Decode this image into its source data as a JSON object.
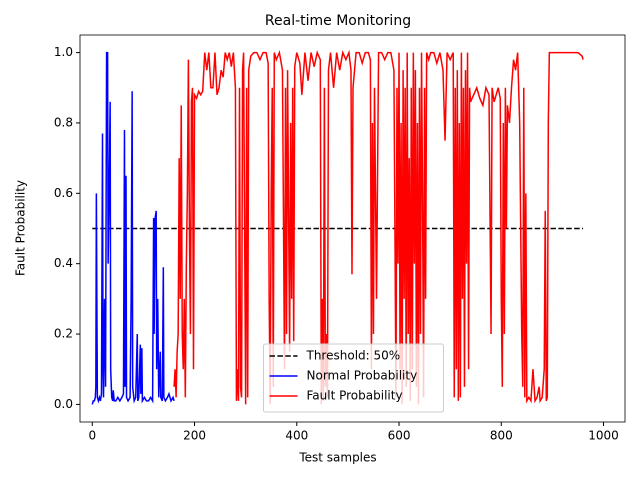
{
  "chart_data": {
    "type": "line",
    "title": "Real-time Monitoring",
    "x_label": "Test samples",
    "y_label": "Fault Probability",
    "xlim": [
      -24,
      1042
    ],
    "ylim": [
      -0.05,
      1.05
    ],
    "xticks": [
      0,
      200,
      400,
      600,
      800,
      1000
    ],
    "yticks": [
      {
        "value": 0,
        "label": "0.0"
      },
      {
        "value": 0.2,
        "label": "0.2"
      },
      {
        "value": 0.4,
        "label": "0.4"
      },
      {
        "value": 0.6,
        "label": "0.6"
      },
      {
        "value": 0.8,
        "label": "0.8"
      },
      {
        "value": 1,
        "label": "1.0"
      }
    ],
    "legend": "lower center",
    "series": [
      {
        "name": "Threshold: 50%",
        "color": "black",
        "linestyle": "dashed",
        "x": [
          0,
          960
        ],
        "values": [
          0.5,
          0.5
        ]
      },
      {
        "name": "Normal Probability",
        "color": "blue",
        "linestyle": "solid",
        "x": [
          0,
          2,
          4,
          6,
          7,
          8,
          9,
          10,
          12,
          14,
          16,
          18,
          20,
          21,
          22,
          24,
          26,
          28,
          30,
          31,
          33,
          35,
          36,
          38,
          40,
          41,
          43,
          46,
          50,
          54,
          58,
          61,
          63,
          64,
          66,
          67,
          70,
          74,
          76,
          78,
          79,
          82,
          85,
          88,
          89,
          91,
          94,
          95,
          97,
          98,
          102,
          106,
          110,
          114,
          118,
          120,
          121,
          123,
          125,
          126,
          128,
          130,
          133,
          134,
          137,
          139,
          140,
          143,
          147,
          150,
          154,
          158,
          160
        ],
        "values": [
          0.0,
          0.01,
          0.01,
          0.02,
          0.05,
          0.6,
          0.3,
          0.02,
          0.01,
          0.02,
          0.01,
          0.03,
          0.77,
          0.1,
          0.02,
          0.3,
          0.05,
          1.0,
          1.0,
          0.4,
          0.6,
          0.86,
          0.1,
          0.02,
          0.01,
          0.04,
          0.01,
          0.01,
          0.02,
          0.01,
          0.02,
          0.03,
          0.78,
          0.05,
          0.65,
          0.02,
          0.01,
          0.02,
          0.3,
          0.89,
          0.05,
          0.01,
          0.02,
          0.2,
          0.01,
          0.02,
          0.17,
          0.03,
          0.16,
          0.01,
          0.02,
          0.01,
          0.01,
          0.02,
          0.01,
          0.53,
          0.2,
          0.53,
          0.55,
          0.1,
          0.3,
          0.02,
          0.15,
          0.02,
          0.01,
          0.39,
          0.02,
          0.01,
          0.02,
          0.03,
          0.01,
          0.02,
          0.01
        ]
      },
      {
        "name": "Fault Probability",
        "color": "red",
        "linestyle": "solid",
        "x": [
          160,
          162,
          164,
          166,
          168,
          170,
          172,
          174,
          176,
          178,
          180,
          182,
          184,
          186,
          188,
          190,
          192,
          194,
          196,
          198,
          200,
          204,
          208,
          212,
          216,
          220,
          224,
          228,
          232,
          236,
          240,
          244,
          248,
          252,
          256,
          260,
          264,
          268,
          272,
          276,
          280,
          282,
          284,
          286,
          288,
          290,
          292,
          294,
          296,
          298,
          300,
          302,
          304,
          306,
          310,
          316,
          322,
          328,
          334,
          340,
          344,
          346,
          348,
          350,
          352,
          354,
          356,
          360,
          366,
          372,
          376,
          378,
          380,
          382,
          386,
          388,
          390,
          392,
          394,
          396,
          400,
          406,
          410,
          416,
          422,
          428,
          434,
          440,
          446,
          448,
          450,
          452,
          454,
          456,
          458,
          460,
          462,
          466,
          472,
          478,
          484,
          490,
          496,
          502,
          506,
          508,
          510,
          516,
          522,
          528,
          534,
          540,
          544,
          546,
          548,
          550,
          552,
          556,
          560,
          566,
          572,
          578,
          584,
          590,
          592,
          594,
          596,
          598,
          600,
          602,
          604,
          606,
          608,
          610,
          612,
          614,
          616,
          618,
          620,
          622,
          624,
          626,
          628,
          630,
          632,
          634,
          636,
          638,
          640,
          642,
          644,
          646,
          648,
          650,
          652,
          654,
          658,
          662,
          668,
          674,
          680,
          686,
          690,
          694,
          700,
          706,
          708,
          710,
          712,
          714,
          716,
          718,
          720,
          722,
          724,
          726,
          728,
          730,
          732,
          734,
          736,
          738,
          740,
          746,
          752,
          758,
          764,
          770,
          776,
          780,
          782,
          786,
          790,
          794,
          798,
          800,
          802,
          804,
          806,
          808,
          810,
          812,
          816,
          820,
          824,
          828,
          832,
          836,
          840,
          842,
          844,
          846,
          848,
          850,
          854,
          858,
          862,
          866,
          870,
          874,
          876,
          880,
          884,
          886,
          888,
          890,
          892,
          894,
          900,
          910,
          920,
          930,
          940,
          950,
          958,
          960
        ],
        "values": [
          0.05,
          0.1,
          0.02,
          0.15,
          0.2,
          0.7,
          0.3,
          0.85,
          0.2,
          0.1,
          0.3,
          0.02,
          0.4,
          0.6,
          0.98,
          0.5,
          0.2,
          0.86,
          0.9,
          0.1,
          0.88,
          0.87,
          0.89,
          0.88,
          0.89,
          1.0,
          0.95,
          1.0,
          0.9,
          0.9,
          1.0,
          0.88,
          0.9,
          0.95,
          0.93,
          1.0,
          0.98,
          1.0,
          0.96,
          1.0,
          0.9,
          0.01,
          0.1,
          0.01,
          0.9,
          0.05,
          0.02,
          0.95,
          1.0,
          0.5,
          0.0,
          0.9,
          0.02,
          0.95,
          0.99,
          1.0,
          1.0,
          0.98,
          1.0,
          1.0,
          0.97,
          0.3,
          0.0,
          0.6,
          0.9,
          0.05,
          1.0,
          0.98,
          1.0,
          0.95,
          0.1,
          0.9,
          0.2,
          0.95,
          0.15,
          0.8,
          0.3,
          0.9,
          0.18,
          0.96,
          1.0,
          0.97,
          0.88,
          1.0,
          0.92,
          1.0,
          0.96,
          1.0,
          0.98,
          0.0,
          0.3,
          0.01,
          0.9,
          0.05,
          0.2,
          0.02,
          0.95,
          1.0,
          0.9,
          1.0,
          0.95,
          1.0,
          0.98,
          1.0,
          0.95,
          0.37,
          0.9,
          1.0,
          1.0,
          0.97,
          1.0,
          1.0,
          0.98,
          0.1,
          0.8,
          0.2,
          0.9,
          0.3,
          1.0,
          1.0,
          0.98,
          1.0,
          1.0,
          0.95,
          0.5,
          0.02,
          0.9,
          0.4,
          1.0,
          0.1,
          0.8,
          0.0,
          0.95,
          0.3,
          0.9,
          0.05,
          1.0,
          0.2,
          0.7,
          0.01,
          0.9,
          0.1,
          1.0,
          0.4,
          0.95,
          0.05,
          0.8,
          0.0,
          0.9,
          0.2,
          1.0,
          0.6,
          0.02,
          0.9,
          0.3,
          1.0,
          0.98,
          1.0,
          1.0,
          0.97,
          1.0,
          0.95,
          0.75,
          1.0,
          0.98,
          1.0,
          0.02,
          0.9,
          0.1,
          0.95,
          0.01,
          0.8,
          0.02,
          1.0,
          0.3,
          0.9,
          0.05,
          0.95,
          0.4,
          1.0,
          0.1,
          0.9,
          0.86,
          0.88,
          0.9,
          0.87,
          0.85,
          0.9,
          0.88,
          0.2,
          0.9,
          0.86,
          0.88,
          0.9,
          0.87,
          0.3,
          0.05,
          0.8,
          0.2,
          0.9,
          0.5,
          0.85,
          0.8,
          0.9,
          0.98,
          0.95,
          1.0,
          0.8,
          0.2,
          0.05,
          0.9,
          0.02,
          0.6,
          0.01,
          0.02,
          0.01,
          0.1,
          0.01,
          0.02,
          0.05,
          0.01,
          0.02,
          0.1,
          0.55,
          0.01,
          0.02,
          0.8,
          1.0,
          1.0,
          1.0,
          1.0,
          1.0,
          1.0,
          1.0,
          0.99,
          0.98
        ]
      }
    ]
  }
}
